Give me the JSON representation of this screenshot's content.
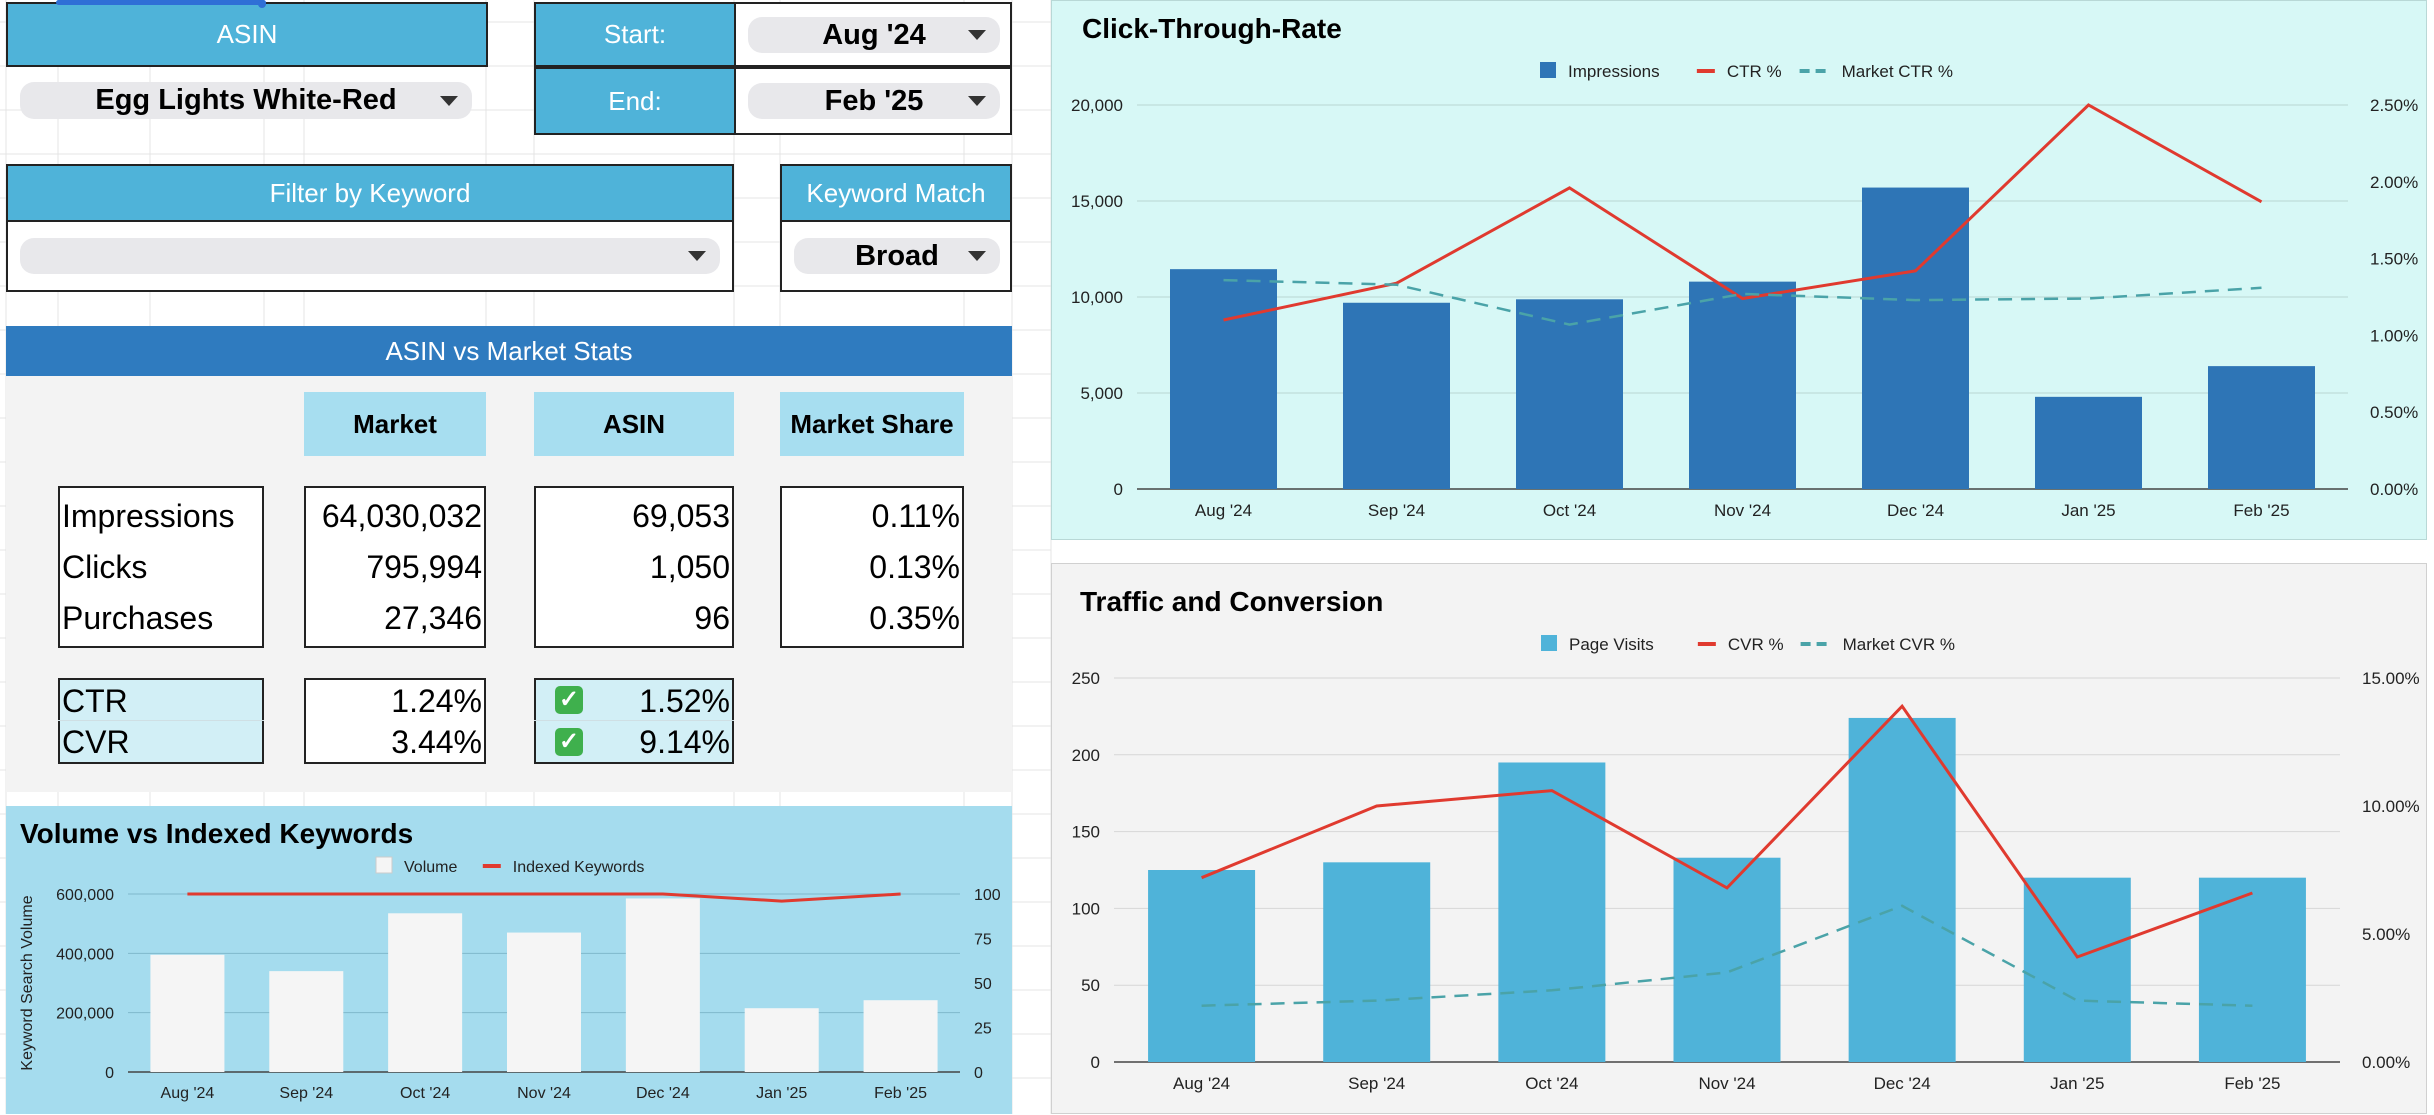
{
  "controls": {
    "asin_header": "ASIN",
    "asin_value": "Egg Lights White-Red",
    "start_label": "Start:",
    "start_value": "Aug '24",
    "end_label": "End:",
    "end_value": "Feb '25",
    "filter_header": "Filter by Keyword",
    "filter_value": "",
    "match_header": "Keyword Match",
    "match_value": "Broad"
  },
  "stats": {
    "title": "ASIN vs Market Stats",
    "columns": [
      "Market",
      "ASIN",
      "Market Share"
    ],
    "rows": [
      {
        "label": "Impressions",
        "market": "64,030,032",
        "asin": "69,053",
        "share": "0.11%"
      },
      {
        "label": "Clicks",
        "market": "795,994",
        "asin": "1,050",
        "share": "0.13%"
      },
      {
        "label": "Purchases",
        "market": "27,346",
        "asin": "96",
        "share": "0.35%"
      }
    ],
    "rates": [
      {
        "label": "CTR",
        "market": "1.24%",
        "asin": "1.52%",
        "check": "✓"
      },
      {
        "label": "CVR",
        "market": "3.44%",
        "asin": "9.14%",
        "check": "✓"
      }
    ]
  },
  "chart_data": [
    {
      "id": "ctr",
      "type": "bar",
      "title": "Click-Through-Rate",
      "categories": [
        "Aug '24",
        "Sep '24",
        "Oct '24",
        "Nov '24",
        "Dec '24",
        "Jan '25",
        "Feb '25"
      ],
      "series": [
        {
          "name": "Impressions",
          "kind": "bar",
          "axis": "left",
          "color": "#2e75b6",
          "values": [
            11450,
            9700,
            9880,
            10800,
            15700,
            4800,
            6400
          ]
        },
        {
          "name": "CTR %",
          "kind": "line",
          "axis": "right",
          "color": "#e03a2f",
          "values": [
            1.1,
            1.34,
            1.96,
            1.24,
            1.42,
            2.5,
            1.87
          ]
        },
        {
          "name": "Market CTR %",
          "kind": "dash",
          "axis": "right",
          "color": "#4aa3a8",
          "values": [
            1.36,
            1.33,
            1.07,
            1.27,
            1.23,
            1.24,
            1.31
          ]
        }
      ],
      "left_ticks": [
        "0",
        "5,000",
        "10,000",
        "15,000",
        "20,000"
      ],
      "right_ticks": [
        "0.00%",
        "0.50%",
        "1.00%",
        "1.50%",
        "2.00%",
        "2.50%"
      ],
      "ylim": [
        0,
        20000
      ],
      "y2lim": [
        0,
        2.5
      ],
      "ylabel": ""
    },
    {
      "id": "traffic",
      "type": "bar",
      "title": "Traffic and Conversion",
      "categories": [
        "Aug '24",
        "Sep '24",
        "Oct '24",
        "Nov '24",
        "Dec '24",
        "Jan '25",
        "Feb '25"
      ],
      "series": [
        {
          "name": "Page Visits",
          "kind": "bar",
          "axis": "left",
          "color": "#4fb3d9",
          "values": [
            125,
            130,
            195,
            133,
            224,
            120,
            120
          ]
        },
        {
          "name": "CVR %",
          "kind": "line",
          "axis": "right",
          "color": "#e03a2f",
          "values": [
            7.2,
            10.0,
            10.6,
            6.8,
            13.9,
            4.1,
            6.6
          ]
        },
        {
          "name": "Market CVR %",
          "kind": "dash",
          "axis": "right",
          "color": "#4aa3a8",
          "values": [
            2.2,
            2.4,
            2.8,
            3.5,
            6.1,
            2.4,
            2.2
          ]
        }
      ],
      "left_ticks": [
        "0",
        "50",
        "100",
        "150",
        "200",
        "250"
      ],
      "right_ticks": [
        "0.00%",
        "5.00%",
        "10.00%",
        "15.00%"
      ],
      "ylim": [
        0,
        250
      ],
      "y2lim": [
        0,
        15
      ],
      "ylabel": ""
    },
    {
      "id": "volume",
      "type": "bar",
      "title": "Volume vs Indexed Keywords",
      "categories": [
        "Aug '24",
        "Sep '24",
        "Oct '24",
        "Nov '24",
        "Dec '24",
        "Jan '25",
        "Feb '25"
      ],
      "series": [
        {
          "name": "Volume",
          "kind": "bar",
          "axis": "left",
          "color": "#f5f5f5",
          "values": [
            395000,
            340000,
            535000,
            470000,
            585000,
            215000,
            242000
          ]
        },
        {
          "name": "Indexed Keywords",
          "kind": "line",
          "axis": "right",
          "color": "#e03a2f",
          "values": [
            100,
            100,
            100,
            100,
            100,
            96,
            100
          ]
        }
      ],
      "left_ticks": [
        "0",
        "200,000",
        "400,000",
        "600,000"
      ],
      "right_ticks": [
        "0",
        "25",
        "50",
        "75",
        "100"
      ],
      "ylim": [
        0,
        600000
      ],
      "y2lim": [
        0,
        100
      ],
      "ylabel": "Keyword Search Volume"
    }
  ]
}
